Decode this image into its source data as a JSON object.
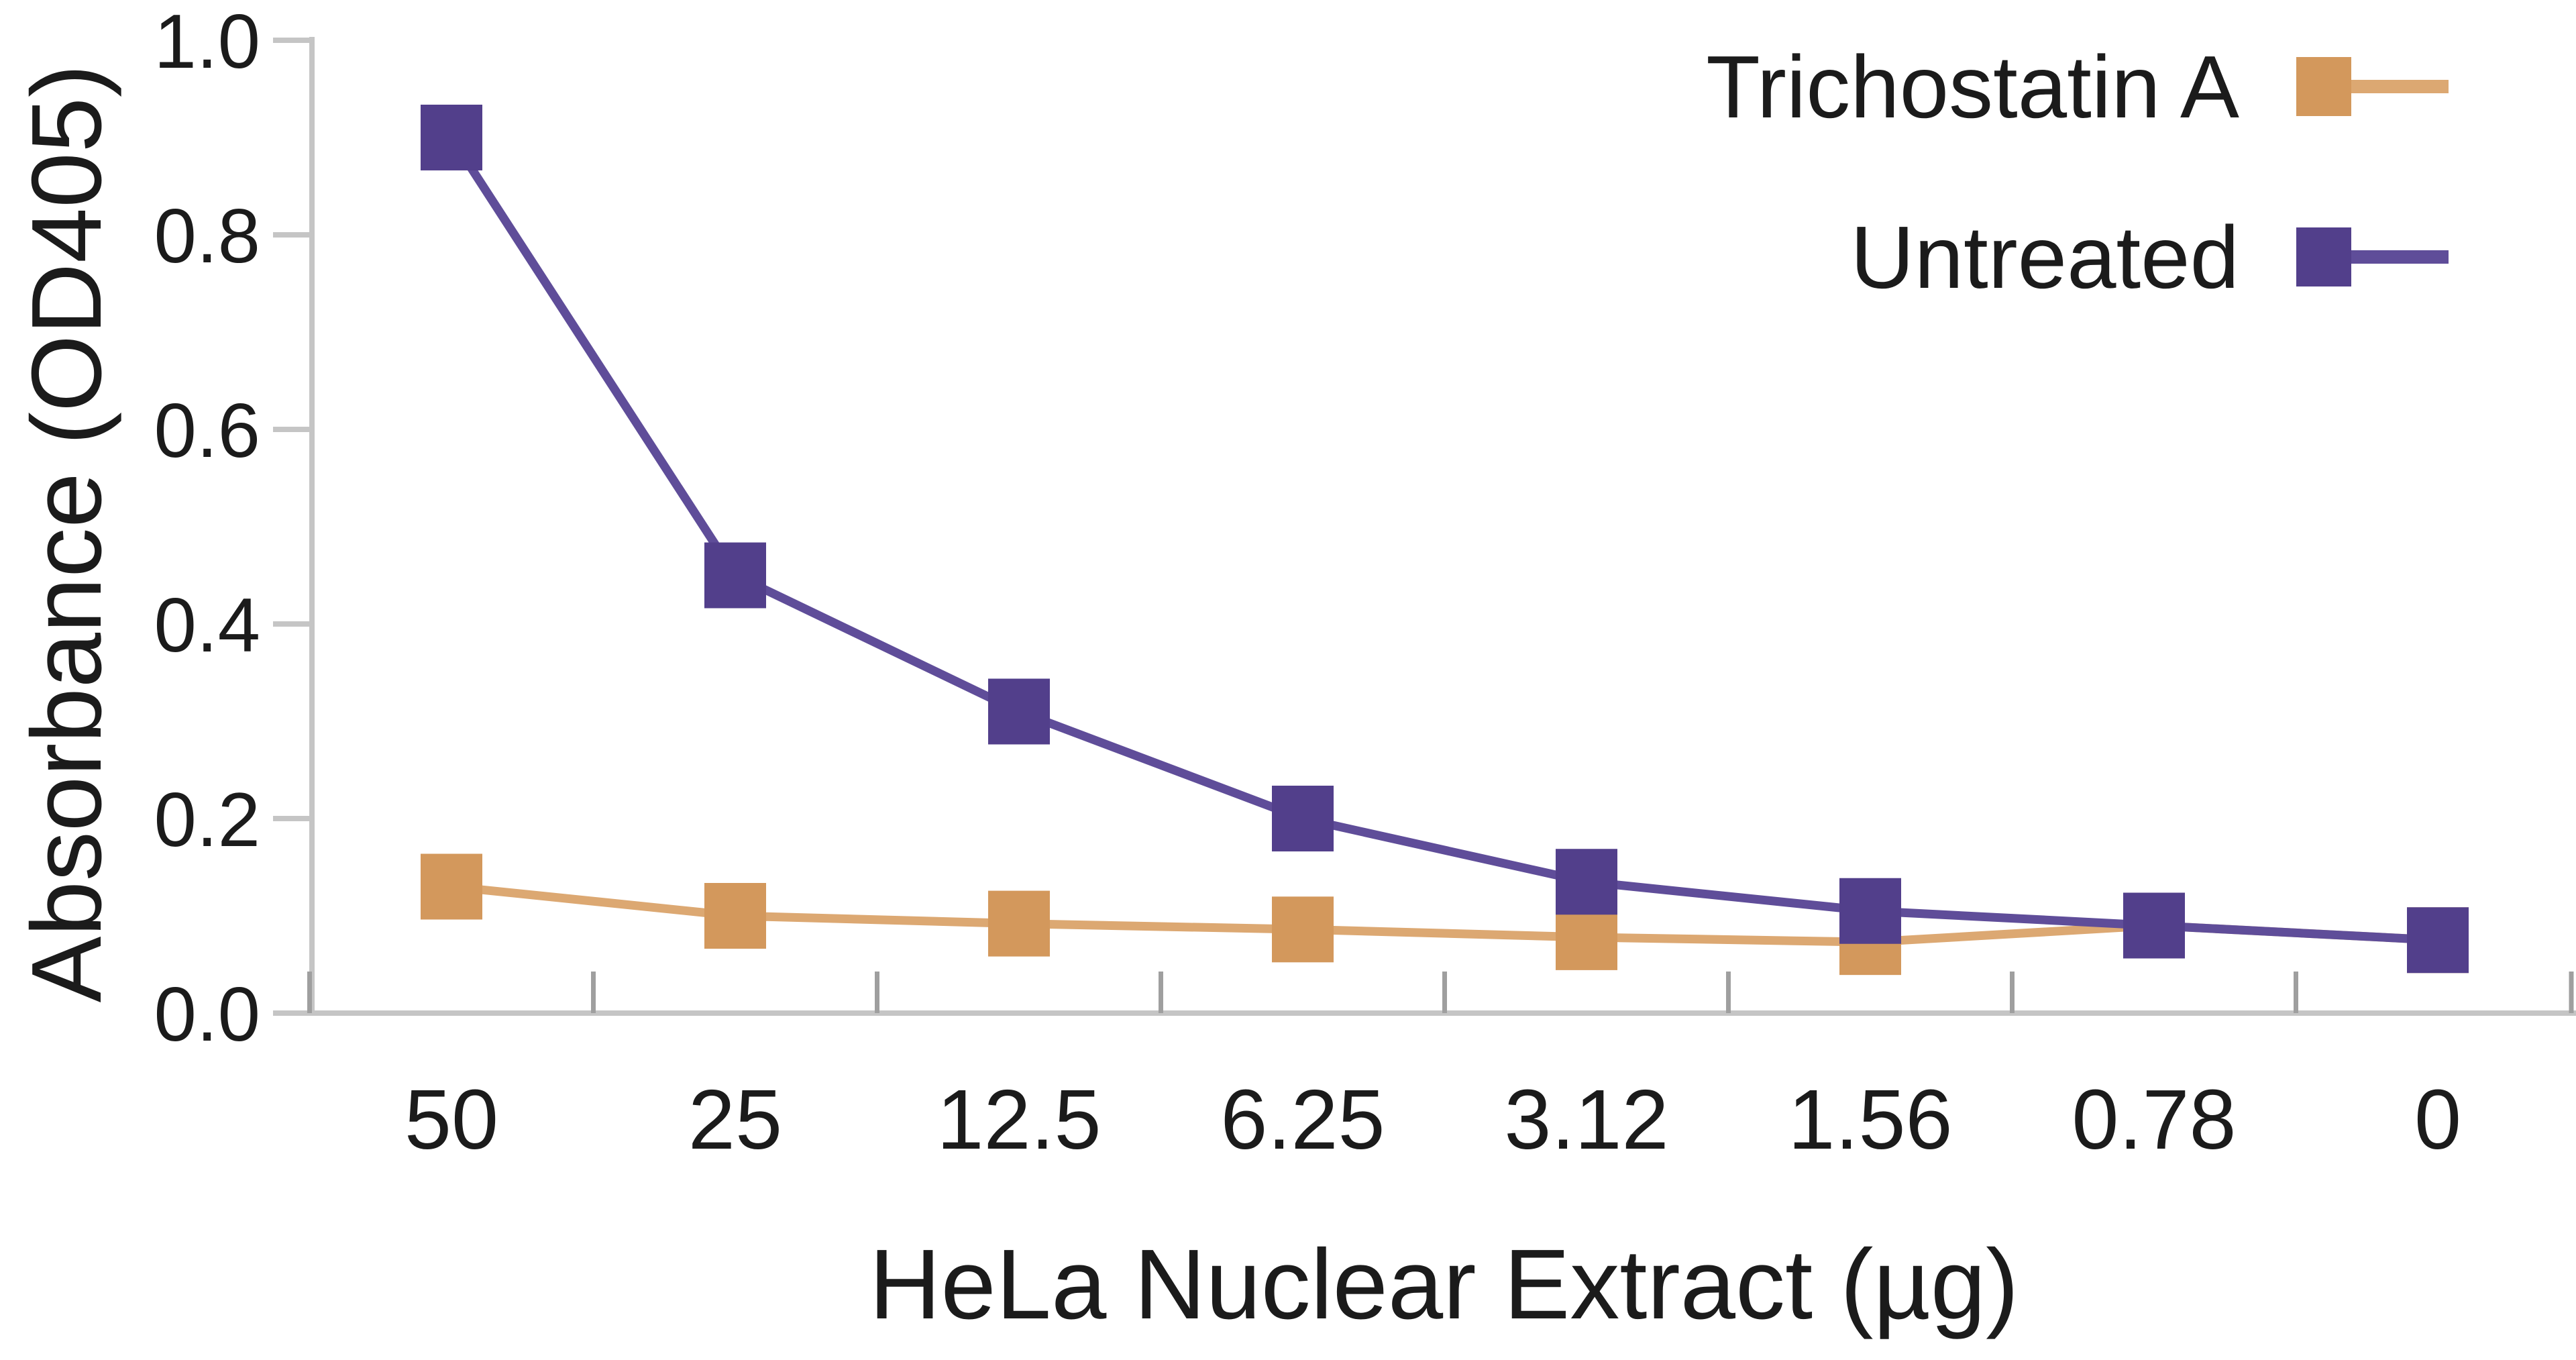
{
  "chart_data": {
    "type": "line",
    "title": "",
    "xlabel": "HeLa Nuclear Extract (µg)",
    "ylabel": "Absorbance (OD405)",
    "categories": [
      "50",
      "25",
      "12.5",
      "6.25",
      "3.12",
      "1.56",
      "0.78",
      "0"
    ],
    "ytick_labels": [
      "1.0",
      "0.8",
      "0.6",
      "0.4",
      "0.2",
      "0.0"
    ],
    "ylim": [
      0,
      1.0
    ],
    "grid": false,
    "legend_position": "top-right",
    "series": [
      {
        "name": "Trichostatin A",
        "marker": "square",
        "marker_color": "#d3985c",
        "line_color": "#dca872",
        "values": [
          0.13,
          0.1,
          0.092,
          0.086,
          0.078,
          0.073,
          0.09,
          0.075
        ]
      },
      {
        "name": "Untreated",
        "marker": "square",
        "marker_color": "#523f8b",
        "line_color": "#5f4d99",
        "values": [
          0.9,
          0.45,
          0.31,
          0.2,
          0.135,
          0.105,
          0.09,
          0.075
        ]
      }
    ]
  },
  "colors": {
    "axis": "#c5c5c5",
    "tick": "#9f9f9f",
    "text": "#1b1b1b",
    "background": "#ffffff"
  }
}
